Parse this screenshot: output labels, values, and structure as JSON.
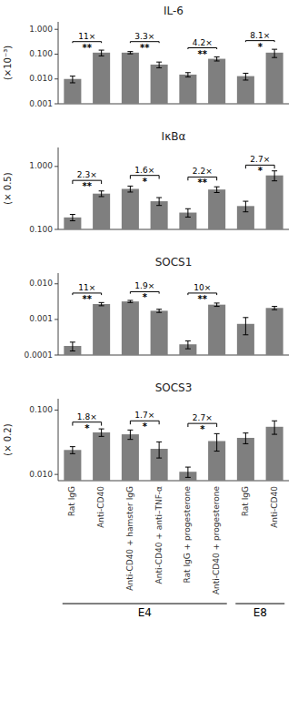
{
  "chart_data": [
    {
      "type": "bar",
      "title": "IL-6",
      "ylabel": "(×10⁻³)",
      "log": "y",
      "grid": false,
      "tick_labels": "y",
      "color": "#7f7f7f",
      "categories": [
        "Rat IgG",
        "Anti-CD40",
        "Anti-CD40 + hamster IgG",
        "Anti-CD40 + anti–TNF-α",
        "Rat IgG + progesterone",
        "Anti-CD40 + progesterone",
        "Rat IgG",
        "Anti-CD40"
      ],
      "values": [
        0.01,
        0.115,
        0.115,
        0.038,
        0.015,
        0.065,
        0.013,
        0.115
      ],
      "errors": [
        0.003,
        0.03,
        0.012,
        0.01,
        0.003,
        0.012,
        0.004,
        0.042
      ],
      "ylim": [
        0.001,
        2.0
      ],
      "yticks": [
        0.001,
        {
          "value": 0.01,
          "label": "0.010"
        },
        {
          "value": 0.1,
          "label": "0.100"
        },
        {
          "value": 1.0,
          "label": "1.000"
        }
      ],
      "annotations": [
        {
          "y": 0.32,
          "label": "11×",
          "sig": "**"
        },
        {
          "y": 0.32,
          "label": "3.3×",
          "sig": "**"
        },
        {
          "y": 0.18,
          "label": "4.2×",
          "sig": "**"
        },
        {
          "y": 0.35,
          "label": "8.1×",
          "sig": "*"
        }
      ]
    },
    {
      "type": "bar",
      "title": "IκBα",
      "ylabel": "(× 0.5)",
      "log": "y",
      "grid": false,
      "tick_labels": "y",
      "color": "#7f7f7f",
      "categories": [
        "Rat IgG",
        "Anti-CD40",
        "Anti-CD40 + hamster IgG",
        "Anti-CD40 + anti–TNF-α",
        "Rat IgG + progesterone",
        "Anti-CD40 + progesterone",
        "Rat IgG",
        "Anti-CD40"
      ],
      "values": [
        0.155,
        0.37,
        0.44,
        0.28,
        0.185,
        0.43,
        0.235,
        0.72
      ],
      "errors": [
        0.018,
        0.038,
        0.048,
        0.04,
        0.028,
        0.045,
        0.045,
        0.13
      ],
      "ylim": [
        0.1,
        2.0
      ],
      "yticks": [
        {
          "value": 0.1,
          "label": "0.100"
        },
        {
          "value": 1.0,
          "label": "1.000"
        }
      ],
      "annotations": [
        {
          "y": 0.6,
          "label": "2.3×",
          "sig": "**"
        },
        {
          "y": 0.72,
          "label": "1.6×",
          "sig": "*"
        },
        {
          "y": 0.68,
          "label": "2.2×",
          "sig": "**"
        },
        {
          "y": 1.05,
          "label": "2.7×",
          "sig": "*"
        }
      ]
    },
    {
      "type": "bar",
      "title": "SOCS1",
      "log": "y",
      "grid": false,
      "tick_labels": "y",
      "color": "#7f7f7f",
      "categories": [
        "Rat IgG",
        "Anti-CD40",
        "Anti-CD40 + hamster IgG",
        "Anti-CD40 + anti–TNF-α",
        "Rat IgG + progesterone",
        "Anti-CD40 + progesterone",
        "Rat IgG",
        "Anti-CD40"
      ],
      "values": [
        0.00018,
        0.0027,
        0.0032,
        0.00175,
        0.0002,
        0.0026,
        0.00075,
        0.0021
      ],
      "errors": [
        5e-05,
        0.00028,
        0.00022,
        0.00018,
        5e-05,
        0.00028,
        0.00038,
        0.00022
      ],
      "ylim": [
        0.0001,
        0.02
      ],
      "yticks": [
        0.0001,
        0.001,
        {
          "value": 0.01,
          "label": "0.010"
        }
      ],
      "annotations": [
        {
          "y": 0.0055,
          "label": "11×",
          "sig": "**"
        },
        {
          "y": 0.006,
          "label": "1.9×",
          "sig": "*"
        },
        {
          "y": 0.0055,
          "label": "10×",
          "sig": "**"
        }
      ]
    },
    {
      "type": "bar",
      "title": "SOCS3",
      "ylabel": "(× 0.2)",
      "log": "y",
      "grid": false,
      "color": "#7f7f7f",
      "categories": [
        "Rat IgG",
        "Anti-CD40",
        "Anti-CD40 + hamster IgG",
        "Anti-CD40 + anti–TNF-α",
        "Rat IgG + progesterone",
        "Anti-CD40 + progesterone",
        "Rat IgG",
        "Anti-CD40"
      ],
      "category_groups": [
        "E4",
        "E4",
        "E4",
        "E4",
        "E4",
        "E4",
        "E8",
        "E8"
      ],
      "values": [
        0.024,
        0.045,
        0.042,
        0.025,
        0.011,
        0.033,
        0.037,
        0.055
      ],
      "errors": [
        0.003,
        0.006,
        0.007,
        0.007,
        0.002,
        0.01,
        0.007,
        0.013
      ],
      "ylim": [
        0.008,
        0.15
      ],
      "yticks": [
        {
          "value": 0.01,
          "label": "0.010"
        },
        {
          "value": 0.1,
          "label": "0.100"
        }
      ],
      "annotations": [
        {
          "y": 0.065,
          "label": "1.8×",
          "sig": "*"
        },
        {
          "y": 0.068,
          "label": "1.7×",
          "sig": "*"
        },
        {
          "y": 0.062,
          "label": "2.7×",
          "sig": "*"
        }
      ]
    }
  ]
}
